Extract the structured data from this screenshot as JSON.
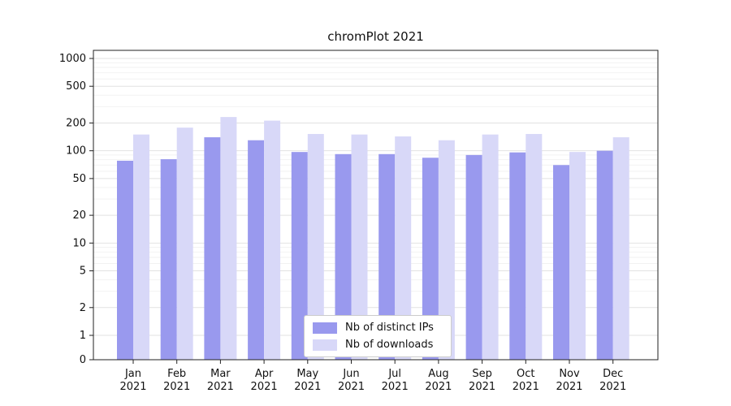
{
  "chart_data": {
    "type": "bar",
    "title": "chromPlot 2021",
    "categories": [
      "Jan",
      "Feb",
      "Mar",
      "Apr",
      "May",
      "Jun",
      "Jul",
      "Aug",
      "Sep",
      "Oct",
      "Nov",
      "Dec"
    ],
    "category_sub": "2021",
    "series": [
      {
        "name": "Nb of distinct IPs",
        "color": "#9999ee",
        "values": [
          78,
          81,
          140,
          130,
          97,
          92,
          92,
          84,
          90,
          96,
          70,
          100
        ]
      },
      {
        "name": "Nb of downloads",
        "color": "#d8d8f8",
        "values": [
          150,
          178,
          232,
          212,
          152,
          150,
          143,
          130,
          150,
          152,
          97,
          140
        ]
      }
    ],
    "yticks": [
      0,
      1,
      2,
      5,
      10,
      20,
      50,
      100,
      200,
      500,
      1000
    ],
    "yscale": "symlog",
    "ylim": [
      0,
      1000
    ],
    "grid": true,
    "legend_position": "lower center"
  },
  "colors": {
    "axis": "#222222",
    "grid_major": "#e2e2e2",
    "grid_minor": "#f2f2f2",
    "tick_text": "#111111"
  }
}
